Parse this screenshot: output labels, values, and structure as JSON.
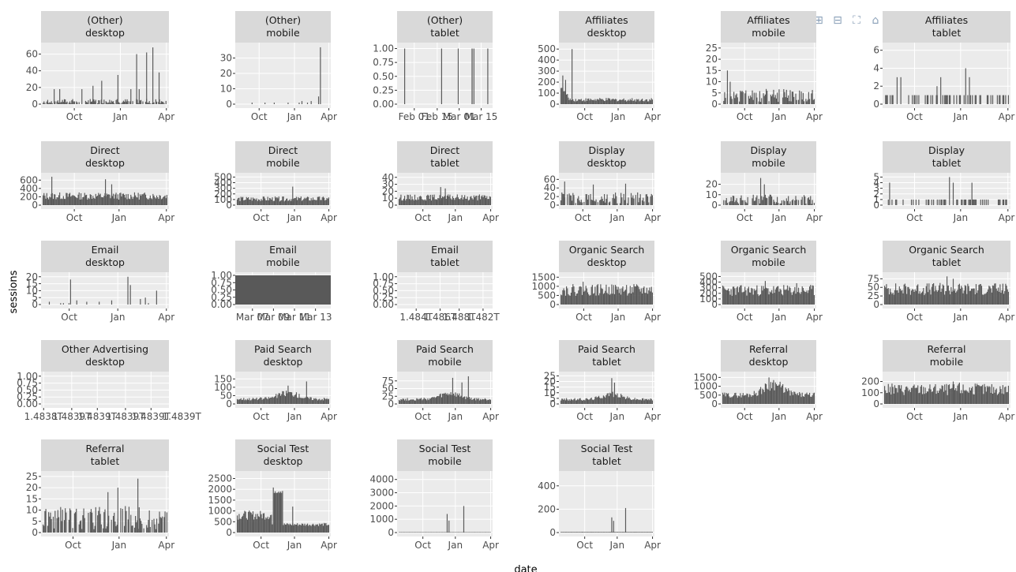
{
  "figure": {
    "xlabel": "date",
    "ylabel": "sessions"
  },
  "colors": {
    "panel_bg": "#ebebeb",
    "strip_bg": "#d9d9d9",
    "bar": "#595959",
    "grid": "#ffffff"
  },
  "modebar": [
    "camera-icon",
    "zoom-icon",
    "pan-icon",
    "zoom-in-icon",
    "zoom-out-icon",
    "autoscale-icon",
    "home-icon",
    "spike-lines-icon",
    "hover-closest-icon",
    "hover-compare-icon",
    "plotly-logo-icon"
  ],
  "chart_data": [
    {
      "type": "bar",
      "facet": [
        "(Other)",
        "desktop"
      ],
      "yticks": [
        "0",
        "20",
        "40",
        "60"
      ],
      "ylim": [
        0,
        70
      ],
      "xticks": [
        "Oct",
        "Jan",
        "Apr"
      ],
      "xtick_pos": [
        0.26,
        0.62,
        0.98
      ],
      "pattern": "spikes",
      "base": 3,
      "spikes": [
        [
          0.4,
          22
        ],
        [
          0.6,
          35
        ],
        [
          0.75,
          60
        ],
        [
          0.83,
          62
        ],
        [
          0.88,
          68
        ],
        [
          0.93,
          38
        ],
        [
          0.47,
          28
        ]
      ]
    },
    {
      "type": "bar",
      "facet": [
        "(Other)",
        "mobile"
      ],
      "yticks": [
        "0",
        "10",
        "20",
        "30"
      ],
      "ylim": [
        0,
        38
      ],
      "xticks": [
        "Oct",
        "Jan",
        "Apr"
      ],
      "xtick_pos": [
        0.25,
        0.62,
        0.98
      ],
      "pattern": "sparse",
      "base": 0,
      "spikes": [
        [
          0.9,
          37
        ],
        [
          0.88,
          5
        ],
        [
          0.3,
          1
        ],
        [
          0.4,
          1
        ],
        [
          0.55,
          1
        ],
        [
          0.7,
          2
        ],
        [
          0.8,
          2
        ]
      ]
    },
    {
      "type": "bar",
      "facet": [
        "(Other)",
        "tablet"
      ],
      "yticks": [
        "0.00",
        "0.25",
        "0.50",
        "0.75",
        "1.00"
      ],
      "ylim": [
        0,
        1.05
      ],
      "xticks": [
        "Feb 01",
        "Feb 15",
        "Mar 01",
        "Mar 15"
      ],
      "xtick_pos": [
        0.18,
        0.42,
        0.65,
        0.88
      ],
      "pattern": "sparse",
      "base": 0,
      "spikes": [
        [
          0.06,
          1
        ],
        [
          0.79,
          1
        ],
        [
          0.81,
          1
        ],
        [
          0.96,
          1
        ]
      ]
    },
    {
      "type": "bar",
      "facet": [
        "Affiliates",
        "desktop"
      ],
      "yticks": [
        "0",
        "100",
        "200",
        "300",
        "400",
        "500"
      ],
      "ylim": [
        0,
        530
      ],
      "xticks": [
        "Oct",
        "Jan",
        "Apr"
      ],
      "xtick_pos": [
        0.27,
        0.62,
        0.98
      ],
      "pattern": "decay",
      "base": 40,
      "spikes": [
        [
          0.02,
          260
        ],
        [
          0.05,
          220
        ],
        [
          0.12,
          500
        ]
      ]
    },
    {
      "type": "bar",
      "facet": [
        "Affiliates",
        "mobile"
      ],
      "yticks": [
        "0",
        "5",
        "10",
        "15",
        "20",
        "25"
      ],
      "ylim": [
        0,
        26
      ],
      "xticks": [
        "Oct",
        "Jan",
        "Apr"
      ],
      "xtick_pos": [
        0.25,
        0.61,
        0.98
      ],
      "pattern": "noisy",
      "base": 4,
      "spikes": [
        [
          0.05,
          15
        ],
        [
          0.08,
          10
        ]
      ]
    },
    {
      "type": "bar",
      "facet": [
        "Affiliates",
        "tablet"
      ],
      "yticks": [
        "0",
        "2",
        "4",
        "6"
      ],
      "ylim": [
        0,
        6.5
      ],
      "xticks": [
        "Oct",
        "Jan",
        "Apr"
      ],
      "xtick_pos": [
        0.25,
        0.61,
        0.98
      ],
      "pattern": "binary",
      "base": 1,
      "spikes": [
        [
          0.1,
          3
        ],
        [
          0.13,
          3
        ],
        [
          0.45,
          3
        ],
        [
          0.65,
          4
        ],
        [
          0.68,
          3
        ],
        [
          0.42,
          2
        ]
      ]
    },
    {
      "type": "bar",
      "facet": [
        "Direct",
        "desktop"
      ],
      "yticks": [
        "0",
        "200",
        "400",
        "600"
      ],
      "ylim": [
        0,
        700
      ],
      "xticks": [
        "Oct",
        "Jan",
        "Apr"
      ],
      "xtick_pos": [
        0.26,
        0.61,
        0.98
      ],
      "pattern": "dense",
      "base": 220,
      "spikes": [
        [
          0.07,
          680
        ],
        [
          0.5,
          620
        ],
        [
          0.55,
          500
        ]
      ]
    },
    {
      "type": "bar",
      "facet": [
        "Direct",
        "mobile"
      ],
      "yticks": [
        "0",
        "100",
        "200",
        "300",
        "400",
        "500"
      ],
      "ylim": [
        0,
        520
      ],
      "xticks": [
        "Oct",
        "Jan",
        "Apr"
      ],
      "xtick_pos": [
        0.27,
        0.62,
        0.98
      ],
      "pattern": "dense",
      "base": 110,
      "spikes": [
        [
          0.6,
          330
        ]
      ]
    },
    {
      "type": "bar",
      "facet": [
        "Direct",
        "tablet"
      ],
      "yticks": [
        "0",
        "10",
        "20",
        "30",
        "40"
      ],
      "ylim": [
        0,
        42
      ],
      "xticks": [
        "Oct",
        "Jan",
        "Apr"
      ],
      "xtick_pos": [
        0.27,
        0.61,
        0.98
      ],
      "pattern": "dense",
      "base": 11,
      "spikes": [
        [
          0.45,
          26
        ],
        [
          0.5,
          24
        ]
      ]
    },
    {
      "type": "bar",
      "facet": [
        "Display",
        "desktop"
      ],
      "yticks": [
        "0",
        "20",
        "40",
        "60"
      ],
      "ylim": [
        0,
        68
      ],
      "xticks": [
        "Oct",
        "Jan",
        "Apr"
      ],
      "xtick_pos": [
        0.25,
        0.61,
        0.98
      ],
      "pattern": "noisy",
      "base": 18,
      "spikes": [
        [
          0.04,
          55
        ],
        [
          0.35,
          48
        ],
        [
          0.7,
          50
        ]
      ]
    },
    {
      "type": "bar",
      "facet": [
        "Display",
        "mobile"
      ],
      "yticks": [
        "0",
        "10",
        "20"
      ],
      "ylim": [
        0,
        28
      ],
      "xticks": [
        "Oct",
        "Jan",
        "Apr"
      ],
      "xtick_pos": [
        0.25,
        0.61,
        0.98
      ],
      "pattern": "noisy",
      "base": 6,
      "spikes": [
        [
          0.41,
          26
        ],
        [
          0.45,
          20
        ]
      ]
    },
    {
      "type": "bar",
      "facet": [
        "Display",
        "tablet"
      ],
      "yticks": [
        "0",
        "1",
        "2",
        "3",
        "4",
        "5"
      ],
      "ylim": [
        0,
        5.2
      ],
      "xticks": [
        "Oct",
        "Jan",
        "Apr"
      ],
      "xtick_pos": [
        0.25,
        0.61,
        0.98
      ],
      "pattern": "binary",
      "base": 1,
      "spikes": [
        [
          0.04,
          4
        ],
        [
          0.52,
          5
        ],
        [
          0.55,
          4
        ],
        [
          0.7,
          4
        ]
      ]
    },
    {
      "type": "bar",
      "facet": [
        "Email",
        "desktop"
      ],
      "yticks": [
        "0",
        "5",
        "10",
        "15",
        "20"
      ],
      "ylim": [
        0,
        21
      ],
      "xticks": [
        "Oct",
        "Jan",
        "Apr"
      ],
      "xtick_pos": [
        0.22,
        0.6,
        0.98
      ],
      "pattern": "sparse",
      "base": 0,
      "spikes": [
        [
          0.22,
          18
        ],
        [
          0.68,
          20
        ],
        [
          0.7,
          14
        ],
        [
          0.05,
          2
        ],
        [
          0.27,
          3
        ],
        [
          0.35,
          2
        ],
        [
          0.45,
          2
        ],
        [
          0.55,
          3
        ],
        [
          0.78,
          4
        ],
        [
          0.82,
          5
        ],
        [
          0.91,
          10
        ]
      ]
    },
    {
      "type": "bar",
      "facet": [
        "Email",
        "mobile"
      ],
      "yticks": [
        "0.00",
        "0.25",
        "0.50",
        "0.75",
        "1.00"
      ],
      "ylim": [
        0,
        1.0
      ],
      "xticks": [
        "Mar 07",
        "Mar 09",
        "Mar 11",
        "Mar 13"
      ],
      "xtick_pos": [
        0.18,
        0.4,
        0.62,
        0.84
      ],
      "pattern": "full",
      "base": 1,
      "spikes": []
    },
    {
      "type": "bar",
      "facet": [
        "Email",
        "tablet"
      ],
      "yticks": [
        "0.00",
        "0.25",
        "0.50",
        "0.75",
        "1.00"
      ],
      "ylim": [
        0,
        1.05
      ],
      "xticks": [
        "1.484T",
        "1.486T",
        "1.488T",
        "1.482T"
      ],
      "xtick_pos": [
        0.2,
        0.45,
        0.65,
        0.9
      ],
      "pattern": "empty",
      "base": 0,
      "spikes": []
    },
    {
      "type": "bar",
      "facet": [
        "Organic Search",
        "desktop"
      ],
      "yticks": [
        "0",
        "500",
        "1000",
        "1500"
      ],
      "ylim": [
        0,
        1600
      ],
      "xticks": [
        "Oct",
        "Jan",
        "Apr"
      ],
      "xtick_pos": [
        0.26,
        0.62,
        0.98
      ],
      "pattern": "dense",
      "base": 800,
      "spikes": [
        [
          0.24,
          1250
        ],
        [
          0.55,
          1100
        ]
      ]
    },
    {
      "type": "bar",
      "facet": [
        "Organic Search",
        "mobile"
      ],
      "yticks": [
        "0",
        "100",
        "200",
        "300",
        "400",
        "500"
      ],
      "ylim": [
        0,
        520
      ],
      "xticks": [
        "Oct",
        "Jan",
        "Apr"
      ],
      "xtick_pos": [
        0.25,
        0.61,
        0.98
      ],
      "pattern": "dense",
      "base": 250,
      "spikes": [
        [
          0.46,
          420
        ],
        [
          0.8,
          380
        ]
      ]
    },
    {
      "type": "bar",
      "facet": [
        "Organic Search",
        "tablet"
      ],
      "yticks": [
        "0",
        "25",
        "50",
        "75"
      ],
      "ylim": [
        0,
        85
      ],
      "xticks": [
        "Oct",
        "Jan",
        "Apr"
      ],
      "xtick_pos": [
        0.25,
        0.61,
        0.98
      ],
      "pattern": "dense",
      "base": 45,
      "spikes": [
        [
          0.5,
          82
        ],
        [
          0.55,
          75
        ]
      ]
    },
    {
      "type": "bar",
      "facet": [
        "Other Advertising",
        "desktop"
      ],
      "yticks": [
        "0.00",
        "0.25",
        "0.50",
        "0.75",
        "1.00"
      ],
      "ylim": [
        0,
        1.05
      ],
      "xticks": [
        "1.4838T",
        "1.4839T",
        "1.4839T",
        "1.4839T",
        "1.4839T",
        "1.4839T"
      ],
      "xtick_pos": [
        0.02,
        0.24,
        0.44,
        0.66,
        0.86,
        1.1
      ],
      "pattern": "empty",
      "base": 0,
      "spikes": []
    },
    {
      "type": "bar",
      "facet": [
        "Paid Search",
        "desktop"
      ],
      "yticks": [
        "0",
        "50",
        "100",
        "150"
      ],
      "ylim": [
        0,
        175
      ],
      "xticks": [
        "Oct",
        "Jan",
        "Apr"
      ],
      "xtick_pos": [
        0.27,
        0.62,
        0.98
      ],
      "pattern": "trend",
      "base": 30,
      "spikes": [
        [
          0.55,
          110
        ],
        [
          0.75,
          135
        ]
      ]
    },
    {
      "type": "bar",
      "facet": [
        "Paid Search",
        "mobile"
      ],
      "yticks": [
        "0",
        "25",
        "50",
        "75"
      ],
      "ylim": [
        0,
        95
      ],
      "xticks": [
        "Oct",
        "Jan",
        "Apr"
      ],
      "xtick_pos": [
        0.27,
        0.61,
        0.98
      ],
      "pattern": "trend",
      "base": 15,
      "spikes": [
        [
          0.58,
          85
        ],
        [
          0.75,
          90
        ],
        [
          0.68,
          70
        ]
      ]
    },
    {
      "type": "bar",
      "facet": [
        "Paid Search",
        "tablet"
      ],
      "yticks": [
        "0",
        "5",
        "10",
        "15",
        "20",
        "25"
      ],
      "ylim": [
        0,
        26
      ],
      "xticks": [
        "Oct",
        "Jan",
        "Apr"
      ],
      "xtick_pos": [
        0.27,
        0.61,
        0.98
      ],
      "pattern": "trend",
      "base": 4,
      "spikes": [
        [
          0.55,
          23
        ],
        [
          0.58,
          19
        ]
      ]
    },
    {
      "type": "bar",
      "facet": [
        "Referral",
        "desktop"
      ],
      "yticks": [
        "0",
        "500",
        "1000",
        "1500"
      ],
      "ylim": [
        0,
        1650
      ],
      "xticks": [
        "Oct",
        "Jan",
        "Apr"
      ],
      "xtick_pos": [
        0.25,
        0.61,
        0.98
      ],
      "pattern": "trend",
      "base": 500,
      "spikes": [
        [
          0.5,
          1500
        ],
        [
          0.55,
          1350
        ]
      ]
    },
    {
      "type": "bar",
      "facet": [
        "Referral",
        "mobile"
      ],
      "yticks": [
        "0",
        "100",
        "200"
      ],
      "ylim": [
        0,
        260
      ],
      "xticks": [
        "Oct",
        "Jan",
        "Apr"
      ],
      "xtick_pos": [
        0.25,
        0.61,
        0.98
      ],
      "pattern": "dense",
      "base": 130,
      "spikes": [
        [
          0.55,
          200
        ],
        [
          0.6,
          190
        ]
      ]
    },
    {
      "type": "bar",
      "facet": [
        "Referral",
        "tablet"
      ],
      "yticks": [
        "0",
        "5",
        "10",
        "15",
        "20",
        "25"
      ],
      "ylim": [
        0,
        26
      ],
      "xticks": [
        "Oct",
        "Jan",
        "Apr"
      ],
      "xtick_pos": [
        0.25,
        0.61,
        0.98
      ],
      "pattern": "noisy",
      "base": 7,
      "spikes": [
        [
          0.76,
          24
        ],
        [
          0.6,
          20
        ],
        [
          0.52,
          18
        ]
      ]
    },
    {
      "type": "bar",
      "facet": [
        "Social Test",
        "desktop"
      ],
      "yticks": [
        "0",
        "500",
        "1000",
        "1500",
        "2000",
        "2500"
      ],
      "ylim": [
        0,
        2700
      ],
      "xticks": [
        "Oct",
        "Jan",
        "Apr"
      ],
      "xtick_pos": [
        0.27,
        0.62,
        0.98
      ],
      "pattern": "plateau",
      "base": 850,
      "spikes": [
        [
          0.6,
          1200
        ]
      ]
    },
    {
      "type": "bar",
      "facet": [
        "Social Test",
        "mobile"
      ],
      "yticks": [
        "0",
        "1000",
        "2000",
        "3000",
        "4000"
      ],
      "ylim": [
        0,
        4400
      ],
      "xticks": [
        "Oct",
        "Jan",
        "Apr"
      ],
      "xtick_pos": [
        0.27,
        0.61,
        0.98
      ],
      "pattern": "sparse",
      "base": 30,
      "spikes": [
        [
          0.52,
          1400
        ],
        [
          0.54,
          900
        ],
        [
          0.7,
          2000
        ]
      ]
    },
    {
      "type": "bar",
      "facet": [
        "Social Test",
        "tablet"
      ],
      "yticks": [
        "0",
        "200",
        "400"
      ],
      "ylim": [
        0,
        500
      ],
      "xticks": [
        "Oct",
        "Jan",
        "Apr"
      ],
      "xtick_pos": [
        0.27,
        0.61,
        0.98
      ],
      "pattern": "sparse",
      "base": 5,
      "spikes": [
        [
          0.55,
          130
        ],
        [
          0.57,
          100
        ],
        [
          0.7,
          210
        ]
      ]
    }
  ]
}
